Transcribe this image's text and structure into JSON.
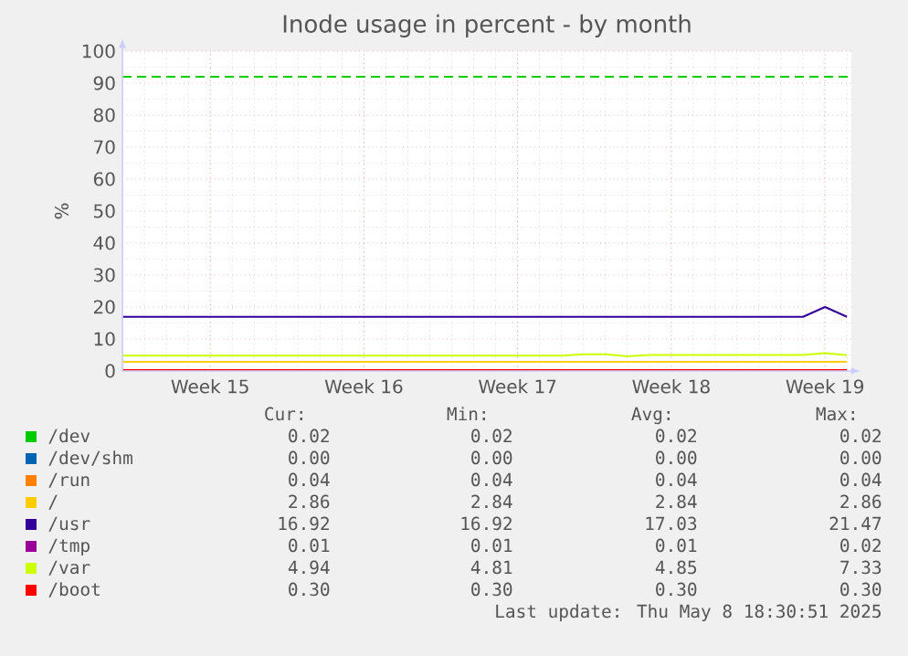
{
  "chart_data": {
    "type": "line",
    "title": "Inode usage in percent - by month",
    "ylabel": "%",
    "categories": [
      null,
      null,
      null,
      null,
      "Week 15",
      null,
      null,
      null,
      null,
      null,
      null,
      "Week 16",
      null,
      null,
      null,
      null,
      null,
      null,
      "Week 17",
      null,
      null,
      null,
      null,
      null,
      null,
      "Week 18",
      null,
      null,
      null,
      null,
      null,
      null,
      "Week 19",
      null
    ],
    "ylim": [
      0,
      100
    ],
    "yticks": [
      0,
      10,
      20,
      30,
      40,
      50,
      60,
      70,
      80,
      90,
      100
    ],
    "grid": true,
    "legend": "bottom",
    "line_style": "solid",
    "marker": "none",
    "ref_lines": [
      {
        "axis": "y",
        "value": 92,
        "color": "#00cc00",
        "line_style": "dashed"
      }
    ],
    "series": [
      {
        "name": "/dev",
        "color": "#00cc00",
        "values": [
          null,
          null,
          null,
          null,
          null,
          null,
          null,
          null,
          null,
          null,
          null,
          null,
          null,
          null,
          null,
          null,
          null,
          null,
          null,
          null,
          null,
          null,
          null,
          null,
          null,
          null,
          null,
          null,
          null,
          null,
          null,
          null,
          null,
          null
        ]
      },
      {
        "name": "/dev/shm",
        "color": "#0066b3",
        "values": [
          null,
          null,
          null,
          null,
          null,
          null,
          null,
          null,
          null,
          null,
          null,
          null,
          null,
          null,
          null,
          null,
          null,
          null,
          null,
          null,
          null,
          null,
          null,
          null,
          null,
          null,
          null,
          null,
          null,
          null,
          null,
          null,
          null,
          null
        ]
      },
      {
        "name": "/run",
        "color": "#ff8000",
        "values": [
          null,
          null,
          null,
          null,
          null,
          null,
          null,
          null,
          null,
          null,
          null,
          null,
          null,
          null,
          null,
          null,
          null,
          null,
          null,
          null,
          null,
          null,
          null,
          null,
          null,
          null,
          null,
          null,
          null,
          null,
          null,
          null,
          null,
          null
        ]
      },
      {
        "name": "/",
        "color": "#ffcc00",
        "values": [
          2.84,
          2.84,
          2.84,
          2.84,
          2.84,
          2.84,
          2.84,
          2.84,
          2.84,
          2.84,
          2.84,
          2.84,
          2.84,
          2.84,
          2.84,
          2.84,
          2.84,
          2.84,
          2.84,
          2.84,
          2.84,
          2.84,
          2.84,
          2.84,
          2.84,
          2.84,
          2.84,
          2.84,
          2.84,
          2.84,
          2.84,
          2.84,
          2.86,
          2.86
        ]
      },
      {
        "name": "/usr",
        "color": "#330099",
        "values": [
          16.92,
          16.92,
          16.92,
          16.92,
          16.92,
          16.92,
          16.92,
          16.92,
          16.92,
          16.92,
          16.92,
          16.92,
          16.92,
          16.92,
          16.92,
          16.92,
          16.92,
          16.92,
          16.92,
          16.92,
          16.92,
          16.92,
          16.92,
          16.92,
          16.92,
          16.92,
          16.92,
          16.92,
          16.92,
          16.92,
          16.92,
          16.92,
          20,
          16.92
        ]
      },
      {
        "name": "/tmp",
        "color": "#990099",
        "values": [
          null,
          null,
          null,
          null,
          null,
          null,
          null,
          null,
          null,
          null,
          null,
          null,
          null,
          null,
          null,
          null,
          null,
          null,
          null,
          null,
          null,
          null,
          null,
          null,
          null,
          null,
          null,
          null,
          null,
          null,
          null,
          null,
          null,
          null
        ]
      },
      {
        "name": "/var",
        "color": "#ccff00",
        "values": [
          4.81,
          4.81,
          4.81,
          4.81,
          4.81,
          4.81,
          4.81,
          4.81,
          4.81,
          4.81,
          4.81,
          4.81,
          4.81,
          4.81,
          4.81,
          4.81,
          4.81,
          4.81,
          4.81,
          4.81,
          4.81,
          5.2,
          5.2,
          4.6,
          5.0,
          5.0,
          5.0,
          5.0,
          5.0,
          5.0,
          5.0,
          5.0,
          5.6,
          4.94
        ]
      },
      {
        "name": "/boot",
        "color": "#ff0000",
        "values": [
          0.3,
          0.3,
          0.3,
          0.3,
          0.3,
          0.3,
          0.3,
          0.3,
          0.3,
          0.3,
          0.3,
          0.3,
          0.3,
          0.3,
          0.3,
          0.3,
          0.3,
          0.3,
          0.3,
          0.3,
          0.3,
          0.3,
          0.3,
          0.3,
          0.3,
          0.3,
          0.3,
          0.3,
          0.3,
          0.3,
          0.3,
          0.3,
          0.3,
          0.3
        ]
      }
    ],
    "annotations": [
      "Cur:",
      "Min:",
      "Avg:",
      "Max:",
      "0.02",
      "0.02",
      "0.02",
      "0.02",
      "0.00",
      "0.00",
      "0.00",
      "0.00",
      "0.04",
      "0.04",
      "0.04",
      "0.04",
      "2.86",
      "2.84",
      "2.84",
      "2.86",
      "16.92",
      "16.92",
      "17.03",
      "21.47",
      "0.01",
      "0.01",
      "0.01",
      "0.02",
      "4.94",
      "4.81",
      "4.85",
      "7.33",
      "0.30",
      "0.30",
      "0.30",
      "0.30",
      "Last update: Thu May  8 18:30:51 2025"
    ]
  }
}
